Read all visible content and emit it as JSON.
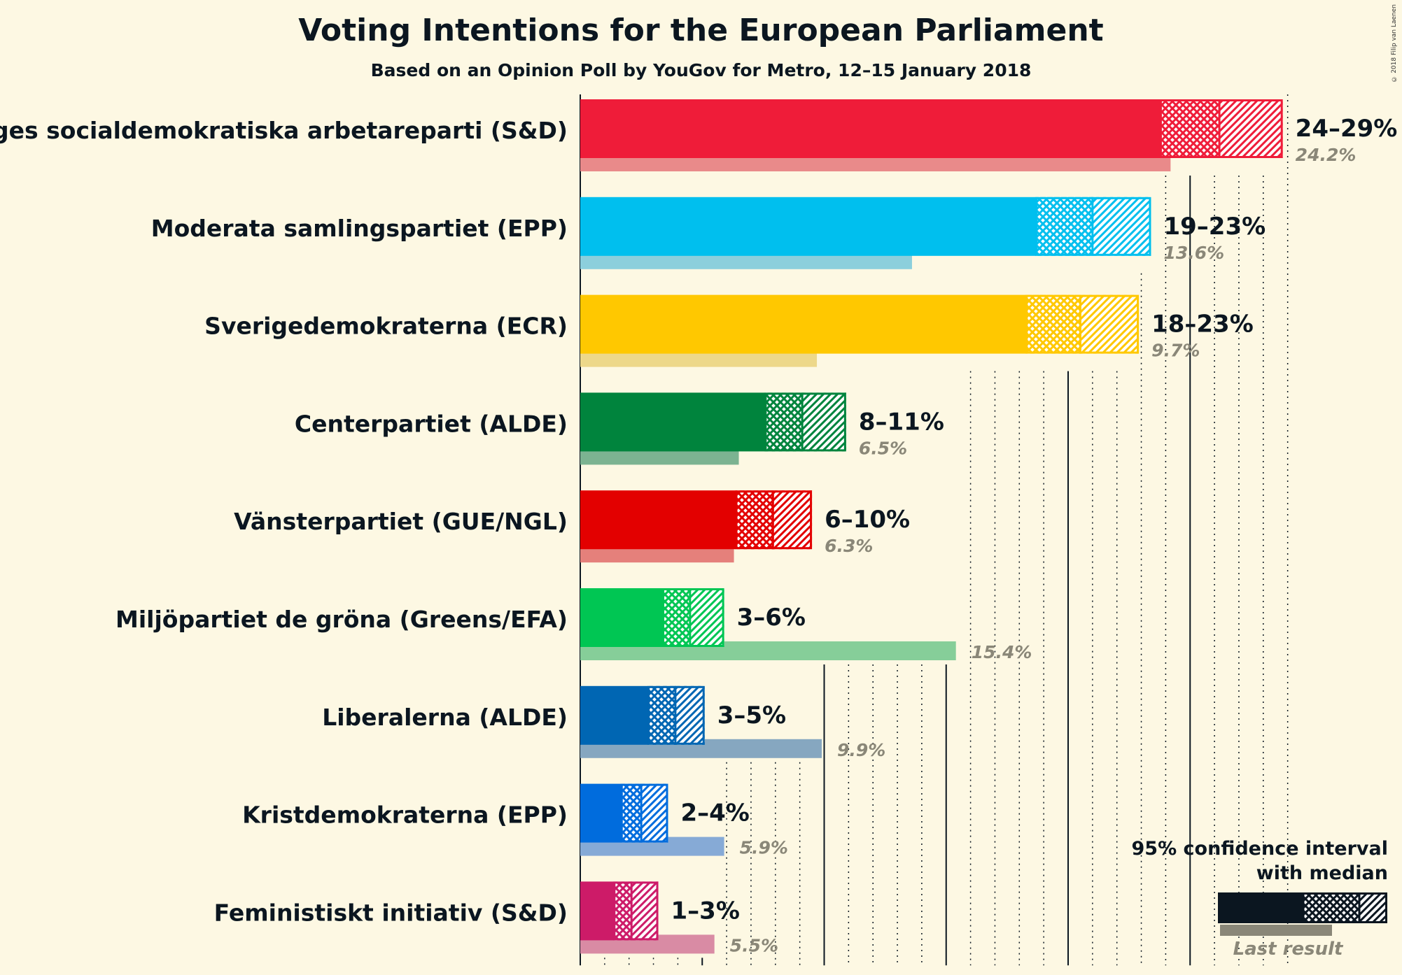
{
  "chart_data": {
    "type": "bar",
    "title": "Voting Intentions for the European Parliament",
    "subtitle": "Based on an Opinion Poll by YouGov for Metro, 12–15 January 2018",
    "copyright": "© 2018 Filip van Laenen",
    "xlim": [
      0,
      30
    ],
    "orientation": "horizontal",
    "series": [
      {
        "name": "Sveriges socialdemokratiska arbetareparti (S&D)",
        "color": "#ef1c39",
        "last_color": "#e98a8a",
        "ci_low": 23.8,
        "median": 26.2,
        "ci_high": 28.8,
        "range_label": "24–29%",
        "last_result": 24.2,
        "last_label": "24.2%"
      },
      {
        "name": "Moderata samlingspartiet (EPP)",
        "color": "#00bfee",
        "last_color": "#8ccfdc",
        "ci_low": 18.7,
        "median": 21.0,
        "ci_high": 23.4,
        "range_label": "19–23%",
        "last_result": 13.6,
        "last_label": "13.6%"
      },
      {
        "name": "Sverigedemokraterna (ECR)",
        "color": "#ffc800",
        "last_color": "#edd88a",
        "ci_low": 18.3,
        "median": 20.5,
        "ci_high": 22.9,
        "range_label": "18–23%",
        "last_result": 9.7,
        "last_label": "9.7%"
      },
      {
        "name": "Centerpartiet (ALDE)",
        "color": "#00843d",
        "last_color": "#7cb391",
        "ci_low": 7.6,
        "median": 9.1,
        "ci_high": 10.9,
        "range_label": "8–11%",
        "last_result": 6.5,
        "last_label": "6.5%"
      },
      {
        "name": "Vänsterpartiet (GUE/NGL)",
        "color": "#e30000",
        "last_color": "#e5807b",
        "ci_low": 6.4,
        "median": 7.9,
        "ci_high": 9.5,
        "range_label": "6–10%",
        "last_result": 6.3,
        "last_label": "6.3%"
      },
      {
        "name": "Miljöpartiet de gröna (Greens/EFA)",
        "color": "#00c653",
        "last_color": "#86ce99",
        "ci_low": 3.4,
        "median": 4.5,
        "ci_high": 5.9,
        "range_label": "3–6%",
        "last_result": 15.4,
        "last_label": "15.4%"
      },
      {
        "name": "Liberalerna (ALDE)",
        "color": "#0066b3",
        "last_color": "#86a7c0",
        "ci_low": 2.8,
        "median": 3.9,
        "ci_high": 5.1,
        "range_label": "3–5%",
        "last_result": 9.9,
        "last_label": "9.9%"
      },
      {
        "name": "Kristdemokraterna (EPP)",
        "color": "#006cdd",
        "last_color": "#86aad6",
        "ci_low": 1.7,
        "median": 2.5,
        "ci_high": 3.6,
        "range_label": "2–4%",
        "last_result": 5.9,
        "last_label": "5.9%"
      },
      {
        "name": "Feministiskt initiativ (S&D)",
        "color": "#cd1b68",
        "last_color": "#d98ba4",
        "ci_low": 1.4,
        "median": 2.1,
        "ci_high": 3.2,
        "range_label": "1–3%",
        "last_result": 5.5,
        "last_label": "5.5%"
      }
    ],
    "legend": {
      "placement": "bottom-right",
      "title_line1": "95% confidence interval",
      "title_line2": "with median",
      "last_result_label": "Last result",
      "color": "#0b1620",
      "last_color": "#8a8778"
    }
  }
}
